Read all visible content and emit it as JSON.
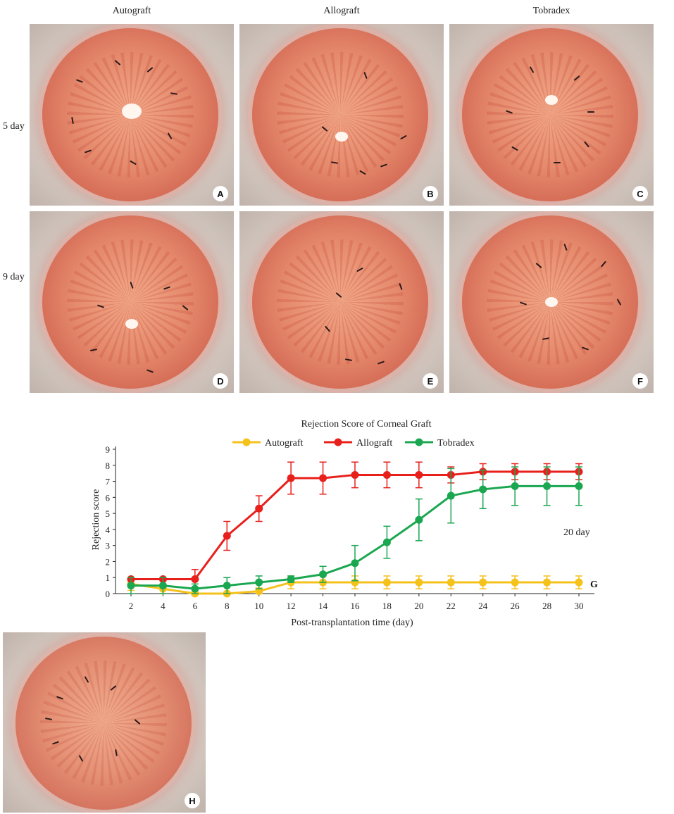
{
  "figure": {
    "columns": [
      "Autograft",
      "Allograft",
      "Tobradex"
    ],
    "rows": [
      "5 day",
      "9 day"
    ],
    "panels": [
      {
        "letter": "A",
        "label": "Autograft 5 day"
      },
      {
        "letter": "B",
        "label": "Allograft 5 day"
      },
      {
        "letter": "C",
        "label": "Tobradex 5 day"
      },
      {
        "letter": "D",
        "label": "Autograft 9 day"
      },
      {
        "letter": "E",
        "label": "Allograft 9 day"
      },
      {
        "letter": "F",
        "label": "Tobradex 9 day"
      }
    ],
    "panel_g_letter": "G",
    "panel_h": {
      "letter": "H"
    },
    "annotation": "20 day"
  },
  "chart_data": {
    "type": "line",
    "title": "Rejection Score of Corneal Graft",
    "xlabel": "Post-transplantation time (day)",
    "ylabel": "Rejection score",
    "x": [
      2,
      4,
      6,
      8,
      10,
      12,
      14,
      16,
      18,
      20,
      22,
      24,
      26,
      28,
      30
    ],
    "xlim": [
      2,
      30
    ],
    "ylim": [
      0,
      9
    ],
    "yticks": [
      0,
      1,
      2,
      3,
      4,
      5,
      6,
      7,
      8,
      9
    ],
    "legend": "top",
    "grid": false,
    "series": [
      {
        "name": "Autograft",
        "color": "#f5c11b",
        "values": [
          0.6,
          0.3,
          0.0,
          0.0,
          0.15,
          0.7,
          0.7,
          0.7,
          0.7,
          0.7,
          0.7,
          0.7,
          0.7,
          0.7,
          0.7
        ],
        "errors": [
          0.4,
          0.3,
          0.1,
          0.1,
          0.2,
          0.4,
          0.4,
          0.4,
          0.4,
          0.4,
          0.4,
          0.4,
          0.4,
          0.4,
          0.4
        ]
      },
      {
        "name": "Allograft",
        "color": "#e8201c",
        "values": [
          0.9,
          0.9,
          0.9,
          3.6,
          5.3,
          7.2,
          7.2,
          7.4,
          7.4,
          7.4,
          7.4,
          7.6,
          7.6,
          7.6,
          7.6
        ],
        "errors": [
          0.1,
          0.1,
          0.6,
          0.9,
          0.8,
          1.0,
          1.0,
          0.8,
          0.8,
          0.8,
          0.5,
          0.5,
          0.5,
          0.5,
          0.5
        ]
      },
      {
        "name": "Tobradex",
        "color": "#1aa750",
        "values": [
          0.5,
          0.5,
          0.3,
          0.5,
          0.7,
          0.9,
          1.2,
          1.9,
          3.2,
          4.6,
          6.1,
          6.5,
          6.7,
          6.7,
          6.7
        ],
        "errors": [
          0.5,
          0.5,
          0.3,
          0.5,
          0.4,
          0.2,
          0.5,
          1.1,
          1.0,
          1.3,
          1.7,
          1.2,
          1.2,
          1.2,
          1.2
        ]
      }
    ]
  }
}
